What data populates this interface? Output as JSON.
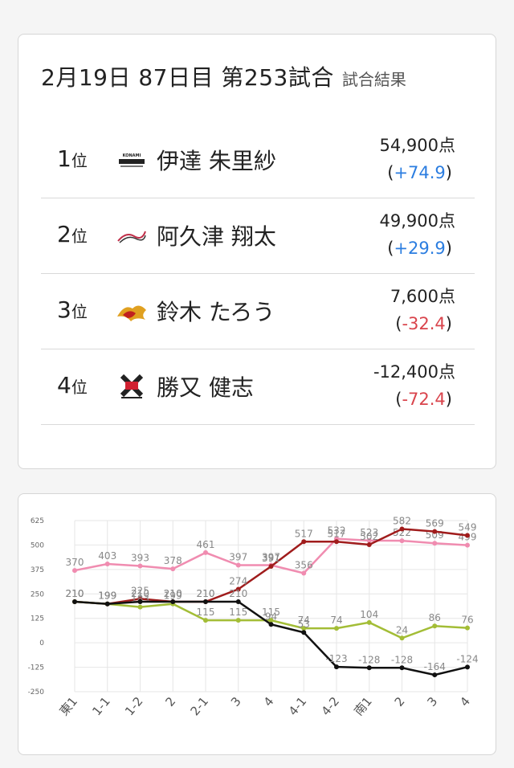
{
  "header": {
    "title": "2月19日  87日目  第253試合",
    "subtitle": "試合結果"
  },
  "results": [
    {
      "rank": "1",
      "rank_suffix": "位",
      "logo": "konami-logo",
      "name": "伊達 朱里紗",
      "score": "54,900点",
      "delta_open": "(",
      "delta": "+74.9",
      "delta_close": ")",
      "sign": "pos"
    },
    {
      "rank": "2",
      "rank_suffix": "位",
      "logo": "sakura-knights-logo",
      "name": "阿久津 翔太",
      "score": "49,900点",
      "delta_open": "(",
      "delta": "+29.9",
      "delta_close": ")",
      "sign": "pos"
    },
    {
      "rank": "3",
      "rank_suffix": "位",
      "logo": "phoenix-logo",
      "name": "鈴木 たろう",
      "score": "7,600点",
      "delta_open": "(",
      "delta": "-32.4",
      "delta_close": ")",
      "sign": "neg"
    },
    {
      "rank": "4",
      "rank_suffix": "位",
      "logo": "fujisankan-logo",
      "name": "勝又 健志",
      "score": "-12,400点",
      "delta_open": "(",
      "delta": "-72.4",
      "delta_close": ")",
      "sign": "neg"
    }
  ],
  "chart_data": {
    "type": "line",
    "categories": [
      "東1",
      "1-1",
      "1-2",
      "2",
      "2-1",
      "3",
      "4",
      "4-1",
      "4-2",
      "南1",
      "2",
      "3",
      "4"
    ],
    "yticks": [
      625,
      500,
      375,
      250,
      125,
      0,
      -125,
      -250
    ],
    "ylim": [
      -250,
      625
    ],
    "grid": true,
    "series": [
      {
        "color": "#f08cb0",
        "values": [
          370,
          403,
          393,
          378,
          461,
          397,
          397,
          356,
          532,
          523,
          522,
          509,
          499
        ]
      },
      {
        "color": "#a01c1c",
        "values": [
          210,
          199,
          225,
          210,
          210,
          274,
          391,
          517,
          517,
          502,
          582,
          569,
          549
        ]
      },
      {
        "color": "#a3bd36",
        "values": [
          210,
          199,
          183,
          199,
          115,
          115,
          115,
          74,
          74,
          104,
          24,
          86,
          76
        ]
      },
      {
        "color": "#111111",
        "values": [
          210,
          199,
          210,
          210,
          210,
          210,
          94,
          53,
          -123,
          -128,
          -128,
          -164,
          -124
        ]
      }
    ]
  }
}
